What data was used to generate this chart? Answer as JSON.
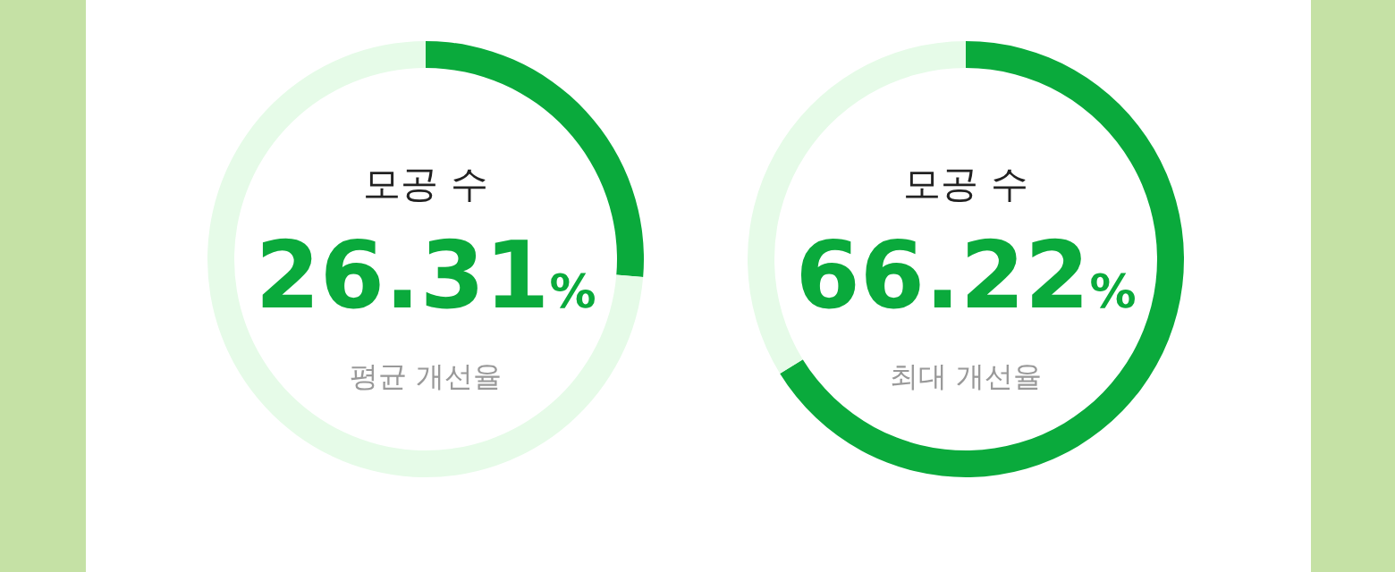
{
  "chart_data": [
    {
      "type": "donut",
      "title": "모공 수",
      "categories": [
        null,
        null
      ],
      "values": [
        26.31,
        73.69
      ],
      "colors": [
        "#0aaa3c",
        "#e6fbe8"
      ],
      "annotations": [
        "26.31%",
        "평균 개선율"
      ]
    },
    {
      "type": "donut",
      "title": "모공 수",
      "categories": [
        null,
        null
      ],
      "values": [
        66.22,
        33.78
      ],
      "colors": [
        "#0aaa3c",
        "#e6fbe8"
      ],
      "annotations": [
        "66.22%",
        "최대 개선율"
      ]
    }
  ]
}
